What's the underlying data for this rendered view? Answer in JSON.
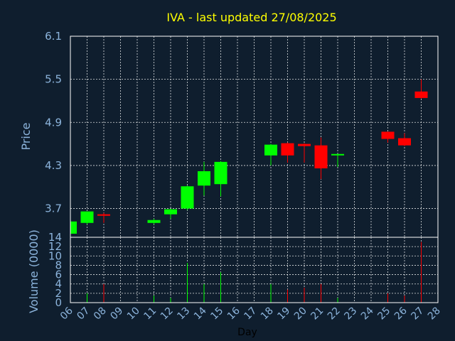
{
  "chart_data": {
    "type": "candlestick",
    "title": "IVA - last updated 27/08/2025",
    "xlabel": "Day",
    "ylabel": "Price",
    "volume_label": "Volume (0000)",
    "grid": true,
    "price_ylim": [
      3.3,
      6.1
    ],
    "price_ticks": [
      "3.7",
      "4.3",
      "4.9",
      "5.5",
      "6.1"
    ],
    "volume_ylim": [
      0,
      14
    ],
    "volume_ticks": [
      "0",
      "2",
      "4",
      "6",
      "8",
      "10",
      "12",
      "14"
    ],
    "x_ticks": [
      "06",
      "07",
      "08",
      "09",
      "10",
      "11",
      "12",
      "13",
      "14",
      "15",
      "16",
      "17",
      "18",
      "19",
      "20",
      "21",
      "22",
      "23",
      "24",
      "25",
      "26",
      "27",
      "28"
    ],
    "colors": {
      "up": "#00ff00",
      "down": "#ff0000",
      "title": "#ffff00",
      "axis_text": "#8cb4dc",
      "background": "#0f1e2e",
      "grid": "#ffffff"
    },
    "candles": [
      {
        "day": "06",
        "open": 3.35,
        "high": 3.52,
        "low": 3.33,
        "close": 3.52
      },
      {
        "day": "07",
        "open": 3.5,
        "high": 3.66,
        "low": 3.48,
        "close": 3.66
      },
      {
        "day": "08",
        "open": 3.62,
        "high": 3.64,
        "low": 3.5,
        "close": 3.6
      },
      {
        "day": "11",
        "open": 3.5,
        "high": 3.56,
        "low": 3.48,
        "close": 3.54
      },
      {
        "day": "12",
        "open": 3.62,
        "high": 3.7,
        "low": 3.56,
        "close": 3.69
      },
      {
        "day": "13",
        "open": 3.7,
        "high": 4.02,
        "low": 3.68,
        "close": 4.01
      },
      {
        "day": "14",
        "open": 4.02,
        "high": 4.35,
        "low": 3.88,
        "close": 4.22
      },
      {
        "day": "15",
        "open": 4.04,
        "high": 4.36,
        "low": 3.87,
        "close": 4.35
      },
      {
        "day": "18",
        "open": 4.44,
        "high": 4.6,
        "low": 4.3,
        "close": 4.59
      },
      {
        "day": "19",
        "open": 4.61,
        "high": 4.62,
        "low": 4.34,
        "close": 4.44
      },
      {
        "day": "20",
        "open": 4.6,
        "high": 4.61,
        "low": 4.34,
        "close": 4.57
      },
      {
        "day": "21",
        "open": 4.58,
        "high": 4.69,
        "low": 4.11,
        "close": 4.26
      },
      {
        "day": "22",
        "open": 4.45,
        "high": 4.46,
        "low": 4.28,
        "close": 4.46
      },
      {
        "day": "25",
        "open": 4.77,
        "high": 4.77,
        "low": 4.62,
        "close": 4.67
      },
      {
        "day": "26",
        "open": 4.68,
        "high": 4.75,
        "low": 4.57,
        "close": 4.58
      },
      {
        "day": "27",
        "open": 5.33,
        "high": 5.5,
        "low": 5.23,
        "close": 5.24
      }
    ],
    "volume": [
      {
        "day": "06",
        "value": 0.0
      },
      {
        "day": "07",
        "value": 2.0
      },
      {
        "day": "08",
        "value": 4.0
      },
      {
        "day": "11",
        "value": 1.5
      },
      {
        "day": "12",
        "value": 1.0
      },
      {
        "day": "13",
        "value": 8.5
      },
      {
        "day": "14",
        "value": 4.0
      },
      {
        "day": "15",
        "value": 6.5
      },
      {
        "day": "18",
        "value": 4.0
      },
      {
        "day": "19",
        "value": 2.8
      },
      {
        "day": "20",
        "value": 3.2
      },
      {
        "day": "21",
        "value": 4.0
      },
      {
        "day": "22",
        "value": 1.0
      },
      {
        "day": "25",
        "value": 2.0
      },
      {
        "day": "26",
        "value": 1.5
      },
      {
        "day": "27",
        "value": 13.0
      }
    ]
  }
}
